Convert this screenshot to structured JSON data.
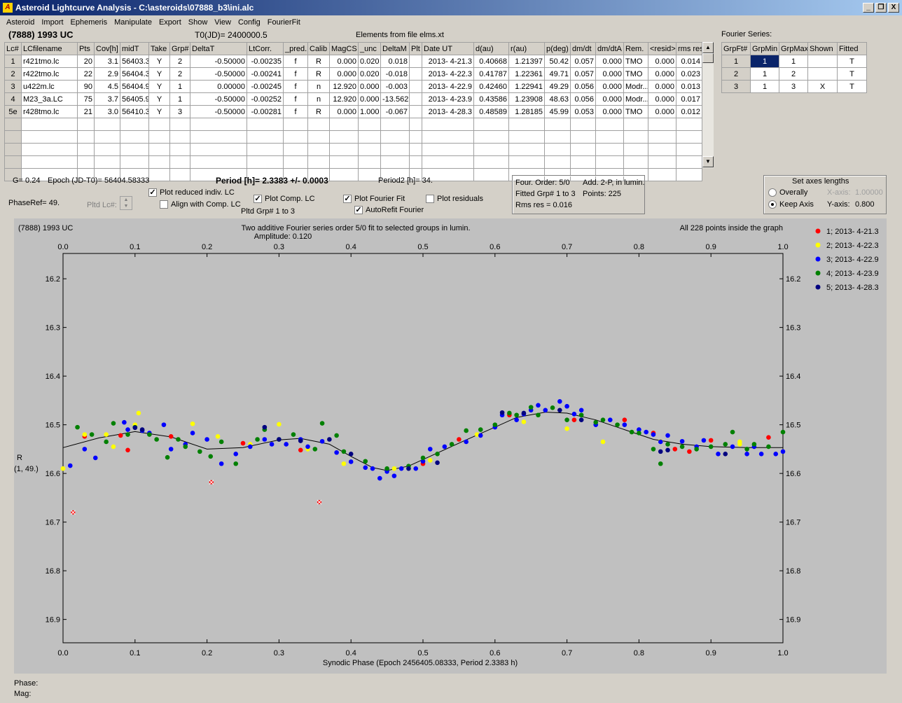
{
  "window": {
    "title": "Asteroid Lightcurve Analysis - C:\\asteroids\\07888_b3\\ini.alc",
    "icon": "app-icon",
    "buttons": [
      "_",
      "Ő",
      "X"
    ]
  },
  "menu": [
    "Asteroid",
    "Import",
    "Ephemeris",
    "Manipulate",
    "Export",
    "Show",
    "View",
    "Config",
    "FourierFit"
  ],
  "header": {
    "asteroid": "(7888) 1993 UC",
    "t0": "T0(JD)= 2400000.5",
    "elements": "Elements from file elms.xt"
  },
  "lc_table": {
    "columns": [
      "Lc#",
      "LCfilename",
      "Pts",
      "Cov[h]",
      "midT",
      "Take",
      "Grp#",
      "DeltaT",
      "LtCorr.",
      "_pred.",
      "Calib",
      "MagCS",
      "_unc",
      "DeltaM",
      "Plt",
      "Date UT",
      "d(au)",
      "r(au)",
      "p(deg)",
      "dm/dt",
      "dm/dtA",
      "Rem.",
      "<resid>",
      "rms res"
    ],
    "rows": [
      [
        "1",
        "r421tmo.lc",
        "20",
        "3.1",
        "56403.3",
        "Y",
        "2",
        "-0.50000",
        "-0.00235",
        "f",
        "R",
        "0.000",
        "0.020",
        "0.018",
        "",
        "2013- 4-21.3",
        "0.40668",
        "1.21397",
        "50.42",
        "0.057",
        "0.000",
        "TMO",
        "0.000",
        "0.014"
      ],
      [
        "2",
        "r422tmo.lc",
        "22",
        "2.9",
        "56404.3",
        "Y",
        "2",
        "-0.50000",
        "-0.00241",
        "f",
        "R",
        "0.000",
        "0.020",
        "-0.018",
        "",
        "2013- 4-22.3",
        "0.41787",
        "1.22361",
        "49.71",
        "0.057",
        "0.000",
        "TMO",
        "0.000",
        "0.023"
      ],
      [
        "3",
        "u422m.lc",
        "90",
        "4.5",
        "56404.9",
        "Y",
        "1",
        "0.00000",
        "-0.00245",
        "f",
        "n",
        "12.920",
        "0.000",
        "-0.003",
        "",
        "2013- 4-22.9",
        "0.42460",
        "1.22941",
        "49.29",
        "0.056",
        "0.000",
        "Modr...",
        "0.000",
        "0.013"
      ],
      [
        "4",
        "M23_3a.LC",
        "75",
        "3.7",
        "56405.9",
        "Y",
        "1",
        "-0.50000",
        "-0.00252",
        "f",
        "n",
        "12.920",
        "0.000",
        "-13.562",
        "",
        "2013- 4-23.9",
        "0.43586",
        "1.23908",
        "48.63",
        "0.056",
        "0.000",
        "Modr...",
        "0.000",
        "0.017"
      ],
      [
        "5e",
        "r428tmo.lc",
        "21",
        "3.0",
        "56410.3",
        "Y",
        "3",
        "-0.50000",
        "-0.00281",
        "f",
        "R",
        "0.000",
        "1.000",
        "-0.067",
        "",
        "2013- 4-28.3",
        "0.48589",
        "1.28185",
        "45.99",
        "0.053",
        "0.000",
        "TMO",
        "0.000",
        "0.012"
      ]
    ],
    "empty_rows": 5
  },
  "fourier_series": {
    "label": "Fourier Series:",
    "columns": [
      "GrpFt#",
      "GrpMin",
      "GrpMax",
      "Shown",
      "Fitted"
    ],
    "rows": [
      [
        "1",
        "1",
        "1",
        "",
        "T"
      ],
      [
        "2",
        "1",
        "2",
        "",
        "T"
      ],
      [
        "3",
        "1",
        "3",
        "X",
        "T"
      ]
    ]
  },
  "controls": {
    "g": "G= 0.24",
    "epoch": "Epoch (JD-T0)= 56404.58333",
    "period": "Period [h]= 2.3383 +/- 0.0003",
    "period2": "Period2 [h]= 34.",
    "phaseref": "PhaseRef= 49.",
    "pltd_lc": "Pltd Lc#:",
    "plot_reduced": "Plot reduced indiv. LC",
    "align": "Align with Comp. LC",
    "plot_comp": "Plot Comp. LC",
    "pltd_grp": "Pltd Grp#  1   to   3",
    "plot_fourier": "Plot Fourier Fit",
    "autorefit": "AutoRefit Fourier",
    "plot_residuals": "Plot residuals",
    "checks": {
      "plot_reduced": true,
      "align": false,
      "plot_comp": true,
      "plot_fourier": true,
      "autorefit": true,
      "plot_residuals": false
    }
  },
  "fit_info": {
    "order": "Four. Order:  5/0",
    "add": "Add. 2-P, in lumin.",
    "fitted": "Fitted Grp# 1 to 3",
    "points": "Points: 225",
    "rms": "Rms res     = 0.016"
  },
  "axes_box": {
    "title": "Set axes lengths",
    "overally": "Overally",
    "keep": "Keep Axis",
    "xaxis_label": "X-axis:",
    "xaxis_value": "1.00000",
    "yaxis_label": "Y-axis:",
    "yaxis_value": "0.800",
    "selected": "keep"
  },
  "graph": {
    "name": "(7888) 1993 UC",
    "title1": "Two additive Fourier series order 5/0 fit to selected groups in lumin.",
    "title2": "Amplitude: 0.120",
    "inside": "All 228 points inside the graph",
    "ylabel1": "R",
    "ylabel2": "(1, 49.)",
    "xlabel": "Synodic Phase (Epoch 2456405.08333, Period 2.3383 h)",
    "legend": [
      {
        "label": "1; 2013- 4-21.3",
        "color": "#ff0000"
      },
      {
        "label": "2; 2013- 4-22.3",
        "color": "#ffff00"
      },
      {
        "label": "3; 2013- 4-22.9",
        "color": "#0000ff"
      },
      {
        "label": "4; 2013- 4-23.9",
        "color": "#008000"
      },
      {
        "label": "5; 2013- 4-28.3",
        "color": "#000080"
      }
    ]
  },
  "chart_data": {
    "type": "scatter",
    "xlim": [
      0,
      1
    ],
    "ylim": [
      16.948,
      16.148
    ],
    "y_inverted": true,
    "xticks": [
      "0.0",
      "0.1",
      "0.2",
      "0.3",
      "0.4",
      "0.5",
      "0.6",
      "0.7",
      "0.8",
      "0.9",
      "1.0"
    ],
    "yticks": [
      "16.2",
      "16.3",
      "16.4",
      "16.5",
      "16.6",
      "16.7",
      "16.8",
      "16.9"
    ],
    "fit_curve": [
      [
        0,
        16.547
      ],
      [
        0.05,
        16.527
      ],
      [
        0.1,
        16.514
      ],
      [
        0.15,
        16.525
      ],
      [
        0.2,
        16.55
      ],
      [
        0.25,
        16.547
      ],
      [
        0.3,
        16.531
      ],
      [
        0.33,
        16.528
      ],
      [
        0.37,
        16.54
      ],
      [
        0.4,
        16.565
      ],
      [
        0.43,
        16.588
      ],
      [
        0.45,
        16.594
      ],
      [
        0.48,
        16.585
      ],
      [
        0.52,
        16.558
      ],
      [
        0.56,
        16.531
      ],
      [
        0.6,
        16.505
      ],
      [
        0.63,
        16.485
      ],
      [
        0.67,
        16.474
      ],
      [
        0.7,
        16.476
      ],
      [
        0.74,
        16.49
      ],
      [
        0.78,
        16.51
      ],
      [
        0.82,
        16.53
      ],
      [
        0.86,
        16.54
      ],
      [
        0.9,
        16.545
      ],
      [
        0.95,
        16.547
      ],
      [
        1.0,
        16.547
      ]
    ],
    "series": [
      {
        "name": "1; 2013- 4-21.3",
        "color": "#ff0000",
        "points": [
          [
            0.03,
            16.524
          ],
          [
            0.08,
            16.522
          ],
          [
            0.09,
            16.552
          ],
          [
            0.15,
            16.524
          ],
          [
            0.25,
            16.538
          ],
          [
            0.33,
            16.552
          ],
          [
            0.5,
            16.58
          ],
          [
            0.55,
            16.53
          ],
          [
            0.62,
            16.48
          ],
          [
            0.71,
            16.49
          ],
          [
            0.78,
            16.49
          ],
          [
            0.82,
            16.517
          ],
          [
            0.85,
            16.55
          ],
          [
            0.87,
            16.555
          ],
          [
            0.9,
            16.532
          ],
          [
            0.98,
            16.526
          ]
        ]
      },
      {
        "name": "1; 2013- 4-21.3 (excluded)",
        "color": "#ff0000",
        "marker": "x",
        "points": [
          [
            0.014,
            16.68
          ],
          [
            0.206,
            16.618
          ],
          [
            0.356,
            16.659
          ]
        ]
      },
      {
        "name": "2; 2013- 4-22.3",
        "color": "#ffff00",
        "points": [
          [
            0.0,
            16.59
          ],
          [
            0.03,
            16.52
          ],
          [
            0.06,
            16.52
          ],
          [
            0.07,
            16.545
          ],
          [
            0.1,
            16.5
          ],
          [
            0.105,
            16.476
          ],
          [
            0.18,
            16.498
          ],
          [
            0.215,
            16.524
          ],
          [
            0.26,
            16.54
          ],
          [
            0.3,
            16.499
          ],
          [
            0.34,
            16.55
          ],
          [
            0.39,
            16.58
          ],
          [
            0.46,
            16.59
          ],
          [
            0.51,
            16.573
          ],
          [
            0.575,
            16.52
          ],
          [
            0.64,
            16.494
          ],
          [
            0.7,
            16.508
          ],
          [
            0.75,
            16.535
          ],
          [
            0.94,
            16.535
          ],
          [
            0.83,
            16.534
          ],
          [
            0.94,
            16.54
          ]
        ]
      },
      {
        "name": "3; 2013- 4-22.9",
        "color": "#0000ff",
        "points": [
          [
            0.01,
            16.584
          ],
          [
            0.03,
            16.55
          ],
          [
            0.045,
            16.568
          ],
          [
            0.085,
            16.495
          ],
          [
            0.09,
            16.51
          ],
          [
            0.11,
            16.512
          ],
          [
            0.12,
            16.517
          ],
          [
            0.14,
            16.5
          ],
          [
            0.15,
            16.55
          ],
          [
            0.17,
            16.54
          ],
          [
            0.18,
            16.517
          ],
          [
            0.2,
            16.53
          ],
          [
            0.22,
            16.58
          ],
          [
            0.24,
            16.56
          ],
          [
            0.26,
            16.545
          ],
          [
            0.28,
            16.53
          ],
          [
            0.29,
            16.54
          ],
          [
            0.31,
            16.54
          ],
          [
            0.33,
            16.53
          ],
          [
            0.34,
            16.545
          ],
          [
            0.36,
            16.534
          ],
          [
            0.38,
            16.557
          ],
          [
            0.4,
            16.576
          ],
          [
            0.42,
            16.588
          ],
          [
            0.43,
            16.59
          ],
          [
            0.44,
            16.61
          ],
          [
            0.45,
            16.596
          ],
          [
            0.46,
            16.605
          ],
          [
            0.47,
            16.59
          ],
          [
            0.49,
            16.59
          ],
          [
            0.5,
            16.575
          ],
          [
            0.51,
            16.55
          ],
          [
            0.53,
            16.545
          ],
          [
            0.56,
            16.535
          ],
          [
            0.58,
            16.522
          ],
          [
            0.6,
            16.505
          ],
          [
            0.61,
            16.48
          ],
          [
            0.63,
            16.49
          ],
          [
            0.64,
            16.478
          ],
          [
            0.65,
            16.47
          ],
          [
            0.66,
            16.46
          ],
          [
            0.67,
            16.47
          ],
          [
            0.69,
            16.452
          ],
          [
            0.7,
            16.462
          ],
          [
            0.71,
            16.478
          ],
          [
            0.72,
            16.47
          ],
          [
            0.74,
            16.5
          ],
          [
            0.76,
            16.49
          ],
          [
            0.78,
            16.5
          ],
          [
            0.8,
            16.51
          ],
          [
            0.81,
            16.515
          ],
          [
            0.82,
            16.52
          ],
          [
            0.83,
            16.535
          ],
          [
            0.84,
            16.522
          ],
          [
            0.86,
            16.534
          ],
          [
            0.88,
            16.545
          ],
          [
            0.89,
            16.532
          ],
          [
            0.91,
            16.56
          ],
          [
            0.93,
            16.545
          ],
          [
            0.95,
            16.56
          ],
          [
            0.96,
            16.545
          ],
          [
            0.97,
            16.56
          ],
          [
            0.99,
            16.56
          ],
          [
            1.0,
            16.555
          ]
        ]
      },
      {
        "name": "4; 2013- 4-23.9",
        "color": "#008000",
        "points": [
          [
            0.02,
            16.505
          ],
          [
            0.04,
            16.52
          ],
          [
            0.06,
            16.535
          ],
          [
            0.07,
            16.497
          ],
          [
            0.09,
            16.52
          ],
          [
            0.1,
            16.505
          ],
          [
            0.12,
            16.52
          ],
          [
            0.13,
            16.53
          ],
          [
            0.145,
            16.567
          ],
          [
            0.16,
            16.53
          ],
          [
            0.17,
            16.545
          ],
          [
            0.19,
            16.555
          ],
          [
            0.205,
            16.565
          ],
          [
            0.22,
            16.535
          ],
          [
            0.24,
            16.58
          ],
          [
            0.27,
            16.53
          ],
          [
            0.28,
            16.51
          ],
          [
            0.3,
            16.53
          ],
          [
            0.32,
            16.52
          ],
          [
            0.35,
            16.55
          ],
          [
            0.36,
            16.497
          ],
          [
            0.38,
            16.522
          ],
          [
            0.39,
            16.555
          ],
          [
            0.42,
            16.575
          ],
          [
            0.45,
            16.59
          ],
          [
            0.48,
            16.585
          ],
          [
            0.5,
            16.568
          ],
          [
            0.52,
            16.56
          ],
          [
            0.54,
            16.54
          ],
          [
            0.56,
            16.512
          ],
          [
            0.58,
            16.51
          ],
          [
            0.6,
            16.5
          ],
          [
            0.62,
            16.476
          ],
          [
            0.63,
            16.48
          ],
          [
            0.65,
            16.464
          ],
          [
            0.66,
            16.48
          ],
          [
            0.68,
            16.465
          ],
          [
            0.7,
            16.49
          ],
          [
            0.72,
            16.48
          ],
          [
            0.74,
            16.495
          ],
          [
            0.75,
            16.49
          ],
          [
            0.77,
            16.5
          ],
          [
            0.79,
            16.515
          ],
          [
            0.8,
            16.517
          ],
          [
            0.82,
            16.55
          ],
          [
            0.83,
            16.58
          ],
          [
            0.84,
            16.54
          ],
          [
            0.86,
            16.545
          ],
          [
            0.88,
            16.55
          ],
          [
            0.9,
            16.545
          ],
          [
            0.92,
            16.54
          ],
          [
            0.93,
            16.515
          ],
          [
            0.95,
            16.55
          ],
          [
            0.96,
            16.54
          ],
          [
            0.98,
            16.545
          ],
          [
            1.0,
            16.515
          ]
        ]
      },
      {
        "name": "5; 2013- 4-28.3",
        "color": "#000080",
        "points": [
          [
            0.1,
            16.506
          ],
          [
            0.11,
            16.51
          ],
          [
            0.28,
            16.505
          ],
          [
            0.3,
            16.53
          ],
          [
            0.33,
            16.533
          ],
          [
            0.37,
            16.53
          ],
          [
            0.4,
            16.56
          ],
          [
            0.48,
            16.59
          ],
          [
            0.52,
            16.578
          ],
          [
            0.61,
            16.475
          ],
          [
            0.64,
            16.476
          ],
          [
            0.69,
            16.47
          ],
          [
            0.72,
            16.49
          ],
          [
            0.83,
            16.555
          ],
          [
            0.84,
            16.552
          ],
          [
            0.92,
            16.56
          ]
        ]
      }
    ]
  },
  "status": {
    "phase": "Phase:",
    "mag": "Mag:"
  }
}
